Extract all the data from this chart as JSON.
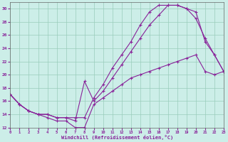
{
  "bg_color": "#cceee8",
  "grid_color": "#99ccbb",
  "line_color": "#882299",
  "xlim": [
    0,
    23
  ],
  "ylim": [
    12,
    31
  ],
  "xticks": [
    0,
    1,
    2,
    3,
    4,
    5,
    6,
    7,
    8,
    9,
    10,
    11,
    12,
    13,
    14,
    15,
    16,
    17,
    18,
    19,
    20,
    21,
    22,
    23
  ],
  "yticks": [
    12,
    14,
    16,
    18,
    20,
    22,
    24,
    26,
    28,
    30
  ],
  "xlabel": "Windchill (Refroidissement éolien,°C)",
  "line1_x": [
    0,
    1,
    2,
    3,
    4,
    5,
    6,
    7,
    8,
    9,
    10,
    11,
    12,
    13,
    14,
    15,
    16,
    17,
    18,
    19,
    20,
    21,
    22,
    23
  ],
  "line1_y": [
    17.0,
    15.5,
    14.5,
    14.0,
    13.5,
    13.0,
    13.0,
    12.0,
    12.0,
    15.5,
    16.5,
    17.5,
    18.5,
    19.5,
    20.0,
    20.5,
    21.0,
    21.5,
    22.0,
    22.5,
    23.0,
    20.5,
    20.0,
    20.5
  ],
  "line2_x": [
    0,
    1,
    2,
    3,
    4,
    5,
    6,
    7,
    8,
    9,
    10,
    11,
    12,
    13,
    14,
    15,
    16,
    17,
    18,
    19,
    20,
    21,
    22,
    23
  ],
  "line2_y": [
    17.0,
    15.5,
    14.5,
    14.0,
    14.0,
    13.5,
    13.5,
    13.0,
    19.0,
    16.0,
    17.5,
    19.5,
    21.5,
    23.5,
    25.5,
    27.5,
    29.0,
    30.5,
    30.5,
    30.0,
    28.5,
    25.5,
    23.0,
    20.5
  ],
  "line3_x": [
    0,
    1,
    2,
    3,
    4,
    5,
    6,
    7,
    8,
    9,
    10,
    11,
    12,
    13,
    14,
    15,
    16,
    17,
    18,
    19,
    20,
    21,
    22,
    23
  ],
  "line3_y": [
    17.0,
    15.5,
    14.5,
    14.0,
    14.0,
    13.5,
    13.5,
    13.5,
    13.5,
    16.5,
    18.5,
    21.0,
    23.0,
    25.0,
    27.5,
    29.5,
    30.5,
    30.5,
    30.5,
    30.0,
    29.5,
    25.0,
    23.0,
    20.5
  ]
}
